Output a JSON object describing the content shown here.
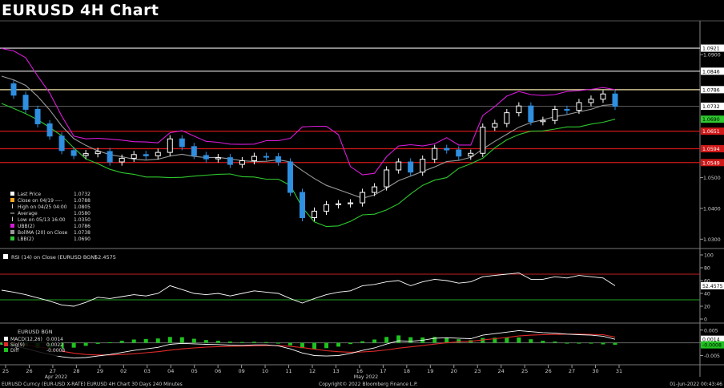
{
  "title": "EURUSD 4H Chart",
  "colors": {
    "background": "#000000",
    "grid": "#3a3a3a",
    "candle_up": "#ffffff",
    "candle_down": "#2f8fe0",
    "upper_band": "#d81bd8",
    "lower_band": "#2ec82e",
    "middle_band": "#9a9a9a",
    "support_line": "#d01818",
    "resistance_line": "#e8e8e8",
    "rsi_line": "#ffffff",
    "macd_line": "#ffffff",
    "signal_line": "#e02a2a",
    "diff_bar": "#1fc21f"
  },
  "legend": {
    "items": [
      {
        "label": "Last Price",
        "value": "1.0732",
        "color": "#ffffff",
        "marker": "square"
      },
      {
        "label": "Close on 04/19 ----",
        "value": "1.0788",
        "color": "#f5a623",
        "marker": "square"
      },
      {
        "label": "High on 04/25 04:00",
        "value": "1.0805",
        "color": "#cccccc",
        "marker": "tick"
      },
      {
        "label": "Average",
        "value": "1.0580",
        "color": "#cccccc",
        "marker": "dash"
      },
      {
        "label": "Low on 05/13 16:00",
        "value": "1.0350",
        "color": "#cccccc",
        "marker": "tick"
      },
      {
        "label": "UBB(2)",
        "value": "1.0786",
        "color": "#d81bd8",
        "marker": "square"
      },
      {
        "label": "BollMA (20)  on Close",
        "value": "1.0738",
        "color": "#9a9a9a",
        "marker": "square"
      },
      {
        "label": "LBB(2)",
        "value": "1.0690",
        "color": "#2ec82e",
        "marker": "square"
      }
    ]
  },
  "rsi_legend": {
    "label": "RSI (14)  on Close (EURUSD BGN)",
    "value": "52.4575"
  },
  "macd_legend": {
    "header": "EURUSD BGN",
    "items": [
      {
        "label": "MACD(12,26)",
        "value": "0.0014",
        "color": "#ffffff"
      },
      {
        "label": "Sig(9)",
        "value": "0.0022",
        "color": "#e02a2a"
      },
      {
        "label": "Diff",
        "value": "-0.0008",
        "color": "#1fc21f"
      }
    ]
  },
  "footer": {
    "left": "EURUSD Curncy (EUR-USD X-RATE) EURUSD 4H Chart 30 Days 240 Minutes",
    "center": "Copyright© 2022 Bloomberg Finance L.P.",
    "right": "01-Jun-2022 00:43:46"
  },
  "chart_data": {
    "type": "line",
    "price_axis": {
      "ticks": [
        "1.0900",
        "1.0500",
        "1.0400",
        "1.0300"
      ],
      "range": [
        1.028,
        1.0955
      ]
    },
    "level_tags": [
      {
        "value": "1.0921",
        "price": 1.0921,
        "kind": "resistance"
      },
      {
        "value": "1.0846",
        "price": 1.0846,
        "kind": "resistance"
      },
      {
        "value": "1.0786",
        "price": 1.0786,
        "kind": "upper_band"
      },
      {
        "value": "1.0732",
        "price": 1.0732,
        "kind": "last_price"
      },
      {
        "value": "1.0690",
        "price": 1.069,
        "kind": "lower_band"
      },
      {
        "value": "1.0651",
        "price": 1.0651,
        "kind": "support"
      },
      {
        "value": "1.0594",
        "price": 1.0594,
        "kind": "support"
      },
      {
        "value": "1.0549",
        "price": 1.0549,
        "kind": "support"
      }
    ],
    "x_axis": {
      "tick_labels": [
        "25",
        "26",
        "27",
        "28",
        "29",
        "02",
        "03",
        "04",
        "05",
        "06",
        "09",
        "10",
        "11",
        "12",
        "13",
        "16",
        "17",
        "18",
        "19",
        "20",
        "23",
        "24",
        "25",
        "26",
        "27",
        "30",
        "31"
      ],
      "group_labels": [
        "Apr 2022",
        "May 2022"
      ]
    },
    "price_series": [
      {
        "name": "Close",
        "values": [
          1.0805,
          1.0768,
          1.0722,
          1.0675,
          1.0635,
          1.0588,
          1.0572,
          1.0578,
          1.0585,
          1.0551,
          1.0563,
          1.0575,
          1.0571,
          1.0582,
          1.0626,
          1.0601,
          1.0572,
          1.0561,
          1.0565,
          1.0543,
          1.0555,
          1.0569,
          1.0568,
          1.0551,
          1.0452,
          1.037,
          1.0391,
          1.0412,
          1.0415,
          1.0418,
          1.0452,
          1.047,
          1.0525,
          1.0551,
          1.0518,
          1.056,
          1.0595,
          1.059,
          1.057,
          1.0579,
          1.0664,
          1.0676,
          1.0711,
          1.0733,
          1.0682,
          1.0686,
          1.0722,
          1.0719,
          1.0744,
          1.0755,
          1.0772,
          1.0732
        ]
      },
      {
        "name": "UBB(2)",
        "values": [
          1.092,
          1.0912,
          1.089,
          1.083,
          1.0775,
          1.07,
          1.0635,
          1.0626,
          1.0628,
          1.0625,
          1.0622,
          1.0617,
          1.0616,
          1.0613,
          1.0646,
          1.0653,
          1.0635,
          1.0618,
          1.0615,
          1.0609,
          1.0608,
          1.0609,
          1.062,
          1.062,
          1.0628,
          1.0665,
          1.0667,
          1.0667,
          1.064,
          1.0536,
          1.0509,
          1.0514,
          1.0568,
          1.0603,
          1.0607,
          1.0603,
          1.061,
          1.063,
          1.0606,
          1.0606,
          1.0702,
          1.0731,
          1.0765,
          1.078,
          1.077,
          1.0767,
          1.077,
          1.078,
          1.0783,
          1.0787,
          1.0793,
          1.0786
        ]
      },
      {
        "name": "BollMA (20)",
        "values": [
          1.083,
          1.0818,
          1.08,
          1.0764,
          1.072,
          1.0668,
          1.0627,
          1.0605,
          1.0587,
          1.0575,
          1.0568,
          1.056,
          1.0557,
          1.056,
          1.057,
          1.0576,
          1.0569,
          1.0565,
          1.0566,
          1.0561,
          1.0555,
          1.0552,
          1.0553,
          1.0558,
          1.0551,
          1.0523,
          1.0497,
          1.0475,
          1.0461,
          1.0447,
          1.0433,
          1.0444,
          1.0466,
          1.049,
          1.0505,
          1.052,
          1.0535,
          1.0552,
          1.0556,
          1.0566,
          1.0593,
          1.0618,
          1.0641,
          1.0664,
          1.0679,
          1.0688,
          1.0698,
          1.0705,
          1.0714,
          1.0722,
          1.0735,
          1.0738
        ]
      },
      {
        "name": "LBB(2)",
        "values": [
          1.0741,
          1.0725,
          1.0708,
          1.0688,
          1.0663,
          1.0636,
          1.0597,
          1.0561,
          1.0545,
          1.0527,
          1.0516,
          1.0511,
          1.0502,
          1.0502,
          1.05,
          1.0501,
          1.0505,
          1.0508,
          1.0511,
          1.0512,
          1.0503,
          1.0502,
          1.0495,
          1.0495,
          1.0475,
          1.0403,
          1.0356,
          1.0341,
          1.0343,
          1.0358,
          1.0379,
          1.0381,
          1.0395,
          1.0415,
          1.0447,
          1.0475,
          1.0492,
          1.05,
          1.053,
          1.0545,
          1.0563,
          1.0597,
          1.0623,
          1.064,
          1.0651,
          1.0652,
          1.0658,
          1.0665,
          1.0665,
          1.0674,
          1.068,
          1.069
        ]
      }
    ],
    "rsi": {
      "axis_ticks": [
        "100",
        "80",
        "60",
        "40",
        "20",
        "0"
      ],
      "range": [
        0,
        100
      ],
      "overbought": 70,
      "oversold": 30,
      "values": [
        45,
        42,
        38,
        33,
        28,
        22,
        20,
        26,
        34,
        32,
        35,
        38,
        36,
        40,
        52,
        46,
        40,
        38,
        40,
        36,
        40,
        44,
        42,
        40,
        32,
        25,
        32,
        38,
        42,
        44,
        52,
        54,
        58,
        60,
        52,
        58,
        62,
        60,
        56,
        58,
        66,
        68,
        70,
        72,
        62,
        62,
        66,
        64,
        68,
        66,
        64,
        52
      ]
    },
    "macd": {
      "axis_ticks": [
        "0.005",
        "0.000",
        "-0.005"
      ],
      "range": [
        -0.008,
        0.0065
      ],
      "macd_values": [
        -0.0005,
        -0.0012,
        -0.0022,
        -0.0035,
        -0.0045,
        -0.0055,
        -0.006,
        -0.0058,
        -0.0052,
        -0.0046,
        -0.0038,
        -0.003,
        -0.0024,
        -0.0018,
        -0.0006,
        -0.0002,
        -0.0004,
        -0.0006,
        -0.0007,
        -0.0009,
        -0.001,
        -0.0008,
        -0.0008,
        -0.0012,
        -0.0024,
        -0.004,
        -0.005,
        -0.0052,
        -0.005,
        -0.0042,
        -0.003,
        -0.002,
        -0.0005,
        0.0008,
        0.0006,
        0.001,
        0.0018,
        0.002,
        0.0018,
        0.0016,
        0.003,
        0.0036,
        0.0042,
        0.0048,
        0.0044,
        0.004,
        0.0038,
        0.0034,
        0.0032,
        0.003,
        0.0026,
        0.0014
      ],
      "signal_values": [
        0.0002,
        -0.0002,
        -0.0008,
        -0.0015,
        -0.0024,
        -0.0033,
        -0.0041,
        -0.0046,
        -0.0048,
        -0.0048,
        -0.0046,
        -0.0043,
        -0.0039,
        -0.0035,
        -0.0029,
        -0.0024,
        -0.002,
        -0.0017,
        -0.0015,
        -0.0014,
        -0.0013,
        -0.0012,
        -0.0011,
        -0.0011,
        -0.0014,
        -0.0019,
        -0.0025,
        -0.0031,
        -0.0035,
        -0.0037,
        -0.0036,
        -0.0033,
        -0.0028,
        -0.0021,
        -0.0016,
        -0.0011,
        -0.0005,
        -0.0,
        0.0004,
        0.0006,
        0.0011,
        0.0016,
        0.0021,
        0.0027,
        0.003,
        0.0032,
        0.0033,
        0.0034,
        0.0034,
        0.0033,
        0.0032,
        0.0022
      ],
      "diff_values": [
        -0.0007,
        -0.001,
        -0.0014,
        -0.002,
        -0.0021,
        -0.0022,
        -0.0019,
        -0.0012,
        -0.0004,
        0.0002,
        0.0008,
        0.0013,
        0.0015,
        0.0017,
        0.0023,
        0.0022,
        0.0016,
        0.0011,
        0.0008,
        0.0005,
        0.0003,
        0.0004,
        0.0003,
        -0.0001,
        -0.001,
        -0.0021,
        -0.0025,
        -0.0021,
        -0.0015,
        -0.0005,
        0.0006,
        0.0013,
        0.0023,
        0.0029,
        0.0022,
        0.0021,
        0.0023,
        0.002,
        0.0014,
        0.001,
        0.0019,
        0.002,
        0.0021,
        0.0021,
        0.0014,
        0.0008,
        0.0005,
        0.0,
        -0.0002,
        -0.0003,
        -0.0006,
        -0.0008
      ]
    }
  }
}
